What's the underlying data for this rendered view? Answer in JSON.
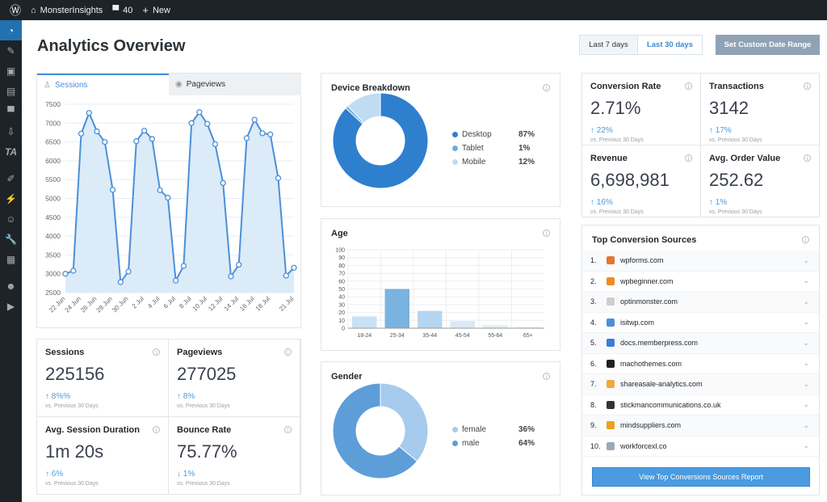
{
  "adminbar": {
    "site": "MonsterInsights",
    "comments": "40",
    "new": "New"
  },
  "sidebar": {
    "icons": [
      "dashboard-icon",
      "pin-icon",
      "media-icon",
      "pages-icon",
      "comments-icon",
      "download-icon",
      "ta-icon",
      "appearance-icon",
      "plugins-icon",
      "users-icon",
      "tools-icon",
      "settings-icon",
      "insights-icon",
      "play-icon"
    ],
    "ta_label": "TA"
  },
  "page": {
    "title": "Analytics Overview"
  },
  "dates": {
    "last7": "Last 7 days",
    "last30": "Last 30 days",
    "custom": "Set Custom Date Range"
  },
  "tabs": {
    "sessions": "Sessions",
    "pageviews": "Pageviews"
  },
  "colors": {
    "accent": "#4a90d9",
    "fill": "#dcebf8",
    "button": "#4a9be0",
    "custom": "#8fa3b5"
  },
  "chart_data": [
    {
      "type": "area",
      "title": "Sessions",
      "x": [
        "22 Jun",
        "23 Jun",
        "24 Jun",
        "25 Jun",
        "26 Jun",
        "27 Jun",
        "28 Jun",
        "29 Jun",
        "30 Jun",
        "1 Jul",
        "2 Jul",
        "3 Jul",
        "4 Jul",
        "5 Jul",
        "6 Jul",
        "7 Jul",
        "8 Jul",
        "9 Jul",
        "10 Jul",
        "11 Jul",
        "12 Jul",
        "13 Jul",
        "14 Jul",
        "15 Jul",
        "16 Jul",
        "17 Jul",
        "18 Jul",
        "19 Jul",
        "20 Jul",
        "21 Jul"
      ],
      "x_tick_labels": [
        "22 Jun",
        "24 Jun",
        "26 Jun",
        "28 Jun",
        "30 Jun",
        "2 Jul",
        "4 Jul",
        "6 Jul",
        "8 Jul",
        "10 Jul",
        "12 Jul",
        "14 Jul",
        "16 Jul",
        "18 Jul",
        "21 Jul"
      ],
      "values": [
        3000,
        3080,
        6720,
        7270,
        6780,
        6500,
        5230,
        2780,
        3060,
        6520,
        6800,
        6580,
        5220,
        5020,
        2820,
        3210,
        7000,
        7290,
        6980,
        6440,
        5410,
        2930,
        3240,
        6600,
        7090,
        6730,
        6700,
        5540,
        2950,
        3160
      ],
      "ylim": [
        2500,
        7500
      ],
      "yticks": [
        2500,
        3000,
        3500,
        4000,
        4500,
        5000,
        5500,
        6000,
        6500,
        7000,
        7500
      ],
      "grid": true
    },
    {
      "type": "pie",
      "title": "Device Breakdown",
      "categories": [
        "Desktop",
        "Tablet",
        "Mobile"
      ],
      "values": [
        87,
        1,
        12
      ],
      "labels": [
        "87%",
        "1%",
        "12%"
      ],
      "colors": [
        "#2f7fcf",
        "#6aaee4",
        "#bfdcf3"
      ]
    },
    {
      "type": "bar",
      "title": "Age",
      "categories": [
        "18-24",
        "25-34",
        "35-44",
        "45-54",
        "55-64",
        "65+"
      ],
      "values": [
        15,
        50,
        22,
        9,
        4,
        2
      ],
      "ylim": [
        0,
        100
      ],
      "yticks": [
        0,
        10,
        20,
        30,
        40,
        50,
        60,
        70,
        80,
        90,
        100
      ],
      "colors": [
        "#c9e1f5",
        "#7ab3df",
        "#b5d5f0",
        "#d9e9f7",
        "#e3eef8",
        "#ebf2f9"
      ],
      "grid": true
    },
    {
      "type": "pie",
      "title": "Gender",
      "categories": [
        "female",
        "male"
      ],
      "values": [
        36,
        64
      ],
      "labels": [
        "36%",
        "64%"
      ],
      "colors": [
        "#a6cbed",
        "#5d9ed9"
      ]
    }
  ],
  "stats": [
    {
      "label": "Sessions",
      "value": "225156",
      "change": "8%%",
      "dir": "up",
      "cmp": "vs. Previous 30 Days"
    },
    {
      "label": "Pageviews",
      "value": "277025",
      "change": "8%",
      "dir": "up",
      "cmp": "vs. Previous 30 Days"
    },
    {
      "label": "Avg. Session Duration",
      "value": "1m 20s",
      "change": "6%",
      "dir": "up",
      "cmp": "vs. Previous 30 Days"
    },
    {
      "label": "Bounce Rate",
      "value": "75.77%",
      "change": "1%",
      "dir": "down",
      "cmp": "vs. Previous 30 Days"
    }
  ],
  "ecom": [
    {
      "label": "Conversion Rate",
      "value": "2.71%",
      "change": "22%",
      "dir": "up",
      "cmp": "vs. Previous 30 Days"
    },
    {
      "label": "Transactions",
      "value": "3142",
      "change": "17%",
      "dir": "up",
      "cmp": "vs. Previous 30 Days"
    },
    {
      "label": "Revenue",
      "value": "6,698,981",
      "change": "16%",
      "dir": "up",
      "cmp": "vs. Previous 30 Days"
    },
    {
      "label": "Avg. Order Value",
      "value": "252.62",
      "change": "1%",
      "dir": "up",
      "cmp": "vs. Previous 30 Days"
    }
  ],
  "sources": {
    "title": "Top Conversion Sources",
    "items": [
      {
        "n": "1.",
        "site": "wpforms.com",
        "color": "#e27730"
      },
      {
        "n": "2.",
        "site": "wpbeginner.com",
        "color": "#f08a24"
      },
      {
        "n": "3.",
        "site": "optinmonster.com",
        "color": "#cfcfcf"
      },
      {
        "n": "4.",
        "site": "isitwp.com",
        "color": "#4a90d9"
      },
      {
        "n": "5.",
        "site": "docs.memberpress.com",
        "color": "#3b7dd8"
      },
      {
        "n": "6.",
        "site": "machothemes.com",
        "color": "#222222"
      },
      {
        "n": "7.",
        "site": "shareasale-analytics.com",
        "color": "#f3a83b"
      },
      {
        "n": "8.",
        "site": "stickmancommunications.co.uk",
        "color": "#333333"
      },
      {
        "n": "9.",
        "site": "mindsuppliers.com",
        "color": "#e8a21c"
      },
      {
        "n": "10.",
        "site": "workforcexl.co",
        "color": "#9aa9b8"
      }
    ],
    "button": "View Top Conversions Sources Report"
  }
}
